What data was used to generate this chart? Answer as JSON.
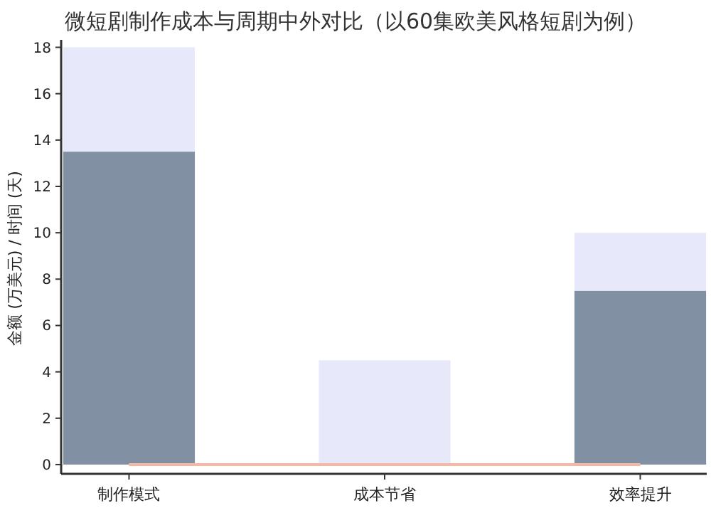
{
  "chart_data": {
    "type": "bar",
    "title": "微短剧制作成本与周期中外对比（以60集欧美风格短剧为例）",
    "ylabel": "金额 (万美元) / 时间 (天)",
    "categories": [
      "制作模式",
      "成本节省",
      "效率提升"
    ],
    "stacked": true,
    "series": [
      {
        "color": "#8290a3",
        "values": [
          13.5,
          0,
          7.5
        ]
      },
      {
        "color": "#e8e8fb",
        "values": [
          4.5,
          4.5,
          2.5
        ]
      }
    ],
    "ylim": [
      -0.4,
      18.2
    ],
    "yticks": [
      0,
      2,
      4,
      6,
      8,
      10,
      12,
      14,
      16,
      18
    ],
    "ref_lines": [
      {
        "axis": "y",
        "value": 0,
        "color": "#f6b8a3"
      }
    ]
  }
}
